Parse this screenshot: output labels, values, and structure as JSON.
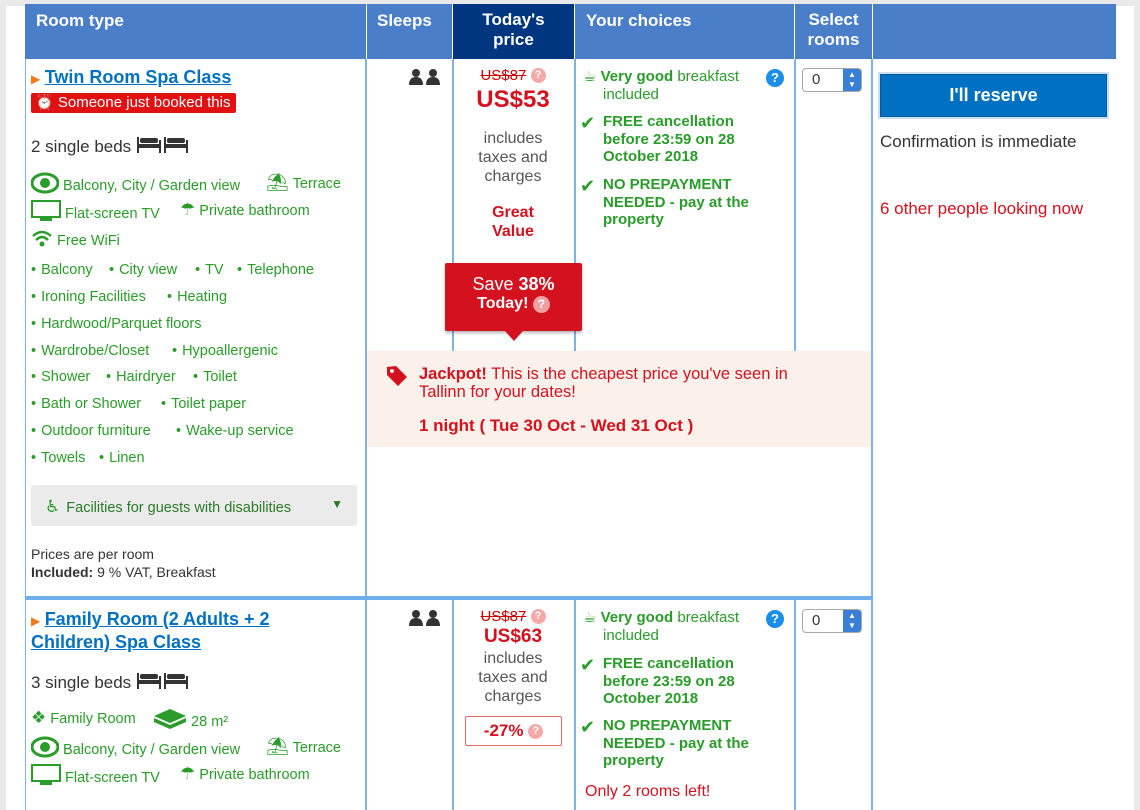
{
  "header": {
    "room_type": "Room type",
    "sleeps": "Sleeps",
    "todays_price_1": "Today's",
    "todays_price_2": "price",
    "your_choices": "Your choices",
    "select_rooms_1": "Select",
    "select_rooms_2": "rooms"
  },
  "room1": {
    "name": "Twin Room Spa Class",
    "booked_badge": "Someone just booked this",
    "beds": "2 single beds",
    "facilities": {
      "balcony_view": "Balcony, City / Garden view",
      "terrace": "Terrace",
      "tv": "Flat-screen TV",
      "bathroom": "Private bathroom",
      "wifi": "Free WiFi"
    },
    "amenities": [
      "Balcony",
      "City view",
      "TV",
      "Telephone",
      "Ironing Facilities",
      "Heating",
      "Hardwood/Parquet floors",
      "Wardrobe/Closet",
      "Hypoallergenic",
      "Shower",
      "Hairdryer",
      "Toilet",
      "Bath or Shower",
      "Toilet paper",
      "Outdoor furniture",
      "Wake-up service",
      "Towels",
      "Linen"
    ],
    "disabilities_button": "Facilities for guests with disabilities",
    "prices_per_room": "Prices are per room",
    "included_label": "Included:",
    "included_value": "9 % VAT, Breakfast",
    "old_price": "US$87",
    "price": "US$53",
    "includes_1": "includes",
    "includes_2": "taxes and",
    "includes_3": "charges",
    "great_1": "Great",
    "great_2": "Value",
    "save_1": "Save",
    "save_pct": "38%",
    "save_2": "Today!",
    "breakfast_bold": "Very good",
    "breakfast_rest": "breakfast",
    "breakfast_2": "included",
    "cancel_1": "FREE cancellation",
    "cancel_2": "before 23:59 on 28",
    "cancel_3": "October 2018",
    "prepay_1": "NO PREPAYMENT",
    "prepay_2": "NEEDED - pay at the",
    "prepay_3": "property",
    "qty": "0"
  },
  "reserve": {
    "button": "I'll reserve",
    "confirmation": "Confirmation is immediate",
    "looking": "6 other people looking now"
  },
  "jackpot": {
    "bold": "Jackpot!",
    "line1": "This is the cheapest price you've seen in",
    "line2": "Tallinn for your dates!",
    "nights": "1 night ( Tue 30 Oct - Wed 31 Oct )"
  },
  "room2": {
    "name_1": "Family Room (2 Adults + 2",
    "name_2": "Children) Spa Class",
    "beds": "3 single beds",
    "family": "Family Room",
    "size": "28 m²",
    "balcony_view": "Balcony, City / Garden view",
    "terrace": "Terrace",
    "tv": "Flat-screen TV",
    "bathroom": "Private bathroom",
    "old_price": "US$87",
    "price": "US$63",
    "includes_1": "includes",
    "includes_2": "taxes and",
    "includes_3": "charges",
    "discount": "-27%",
    "breakfast_bold": "Very good",
    "breakfast_rest": "breakfast",
    "breakfast_2": "included",
    "cancel_1": "FREE cancellation",
    "cancel_2": "before 23:59 on 28",
    "cancel_3": "October 2018",
    "prepay_1": "NO PREPAYMENT",
    "prepay_2": "NEEDED - pay at the",
    "prepay_3": "property",
    "rooms_left": "Only 2 rooms left!",
    "qty": "0"
  },
  "icons": [
    "person-icon",
    "bed-icon",
    "eye-icon",
    "terrace-icon",
    "tv-icon",
    "shower-icon",
    "wifi-icon",
    "wheelchair-icon",
    "alarm-icon",
    "coffee-icon",
    "check-icon",
    "tag-icon",
    "family-icon",
    "size-icon",
    "question-icon"
  ],
  "colors": {
    "header": "#4b7ec9",
    "header_active": "#003580",
    "green": "#2a9c2a",
    "red": "#d4111e",
    "link": "#0071c2"
  }
}
